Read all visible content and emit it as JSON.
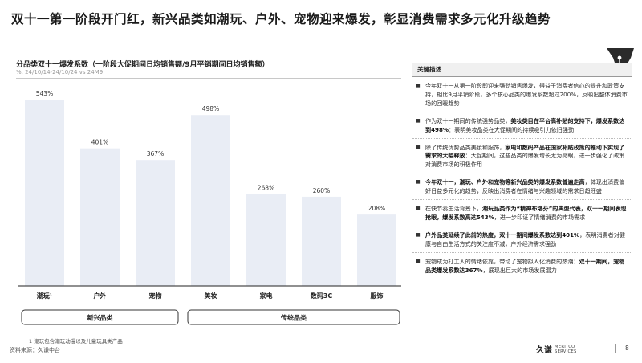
{
  "slide": {
    "title": "双十一第一阶段开门红，新兴品类如潮玩、户外、宠物迎来爆发，彰显消费需求多元化升级趋势",
    "footnote": "1   潮玩包含潮玩动漫以及儿童玩具类产品",
    "source": "资料来源：久谦中台",
    "page_number": "8",
    "logo_cn": "久谦",
    "logo_en_line1": "MERITCO",
    "logo_en_line2": "SERVICES"
  },
  "chart_data": {
    "type": "bar",
    "title": "分品类双十一爆发系数（一阶段大促期间日均销售额/9月平销期间日均销售额）",
    "unit_label": "%, 24/10/14-24/10/24 vs 24M9",
    "categories": [
      "潮玩¹",
      "户外",
      "宠物",
      "美妆",
      "家电",
      "数码3C",
      "服饰"
    ],
    "values": [
      543,
      401,
      367,
      498,
      268,
      260,
      208
    ],
    "value_labels": [
      "543%",
      "401%",
      "367%",
      "498%",
      "268%",
      "260%",
      "208%"
    ],
    "ylim": [
      0,
      600
    ],
    "bar_color": "#e9edf5",
    "groups": [
      {
        "name": "新兴品类",
        "from": 0,
        "to": 2
      },
      {
        "name": "传统品类",
        "from": 3,
        "to": 6
      }
    ]
  },
  "observations": {
    "header": "关键描述",
    "items": [
      {
        "parts": [
          {
            "t": "今年双十一从第一阶段即迎来强劲销售爆发，得益于消费者信心的提升和政策支持，相比9月平销阶段，多个核心品类的爆发系数超过200%，反映出整体消费市场的回暖趋势",
            "b": false
          }
        ]
      },
      {
        "parts": [
          {
            "t": "作为双十一期间的传统强势品类，",
            "b": false
          },
          {
            "t": "美妆类目在平台高补贴的支持下，爆发系数达到498%",
            "b": true
          },
          {
            "t": "：表明美妆品类在大促期间的持续吸引力依旧强劲",
            "b": false
          }
        ]
      },
      {
        "parts": [
          {
            "t": "除了传统优势品类美妆和服饰，",
            "b": false
          },
          {
            "t": "家电和数码产品在国家补贴政策的推动下实现了需求的大幅释放",
            "b": true
          },
          {
            "t": "：大促期间，这些品类的爆发增长尤为亮眼，进一步强化了政策对消费市场的积极作用",
            "b": false
          }
        ]
      },
      {
        "parts": [
          {
            "t": "今年双十一，潮玩、户外和宠物等新兴品类的爆发系数普遍走高",
            "b": true
          },
          {
            "t": "，体现出消费偏好日益多元化的趋势，反映出消费者在情绪与兴趣领域的需求日趋旺盛",
            "b": false
          }
        ]
      },
      {
        "parts": [
          {
            "t": "在快节奏生活背景下，",
            "b": false
          },
          {
            "t": "潮玩品类作为“精神布洛芬”的典型代表，双十一期间表现抢眼，爆发系数高达543%",
            "b": true
          },
          {
            "t": "，进一步印证了情绪消费的市场需求",
            "b": false
          }
        ]
      },
      {
        "parts": [
          {
            "t": "户外品类延续了此前的热度，双十一期间爆发系数达到401%",
            "b": true
          },
          {
            "t": "，表明消费者对健康与自由生活方式的关注度不减，户外经济需求强劲",
            "b": false
          }
        ]
      },
      {
        "parts": [
          {
            "t": "宠物成为打工人的情绪依靠，带动了宠物拟人化消费的热潮：",
            "b": false
          },
          {
            "t": "双十一期间，宠物品类爆发系数达367%",
            "b": true
          },
          {
            "t": "，展现出巨大的市场发展潜力",
            "b": false
          }
        ]
      }
    ]
  }
}
